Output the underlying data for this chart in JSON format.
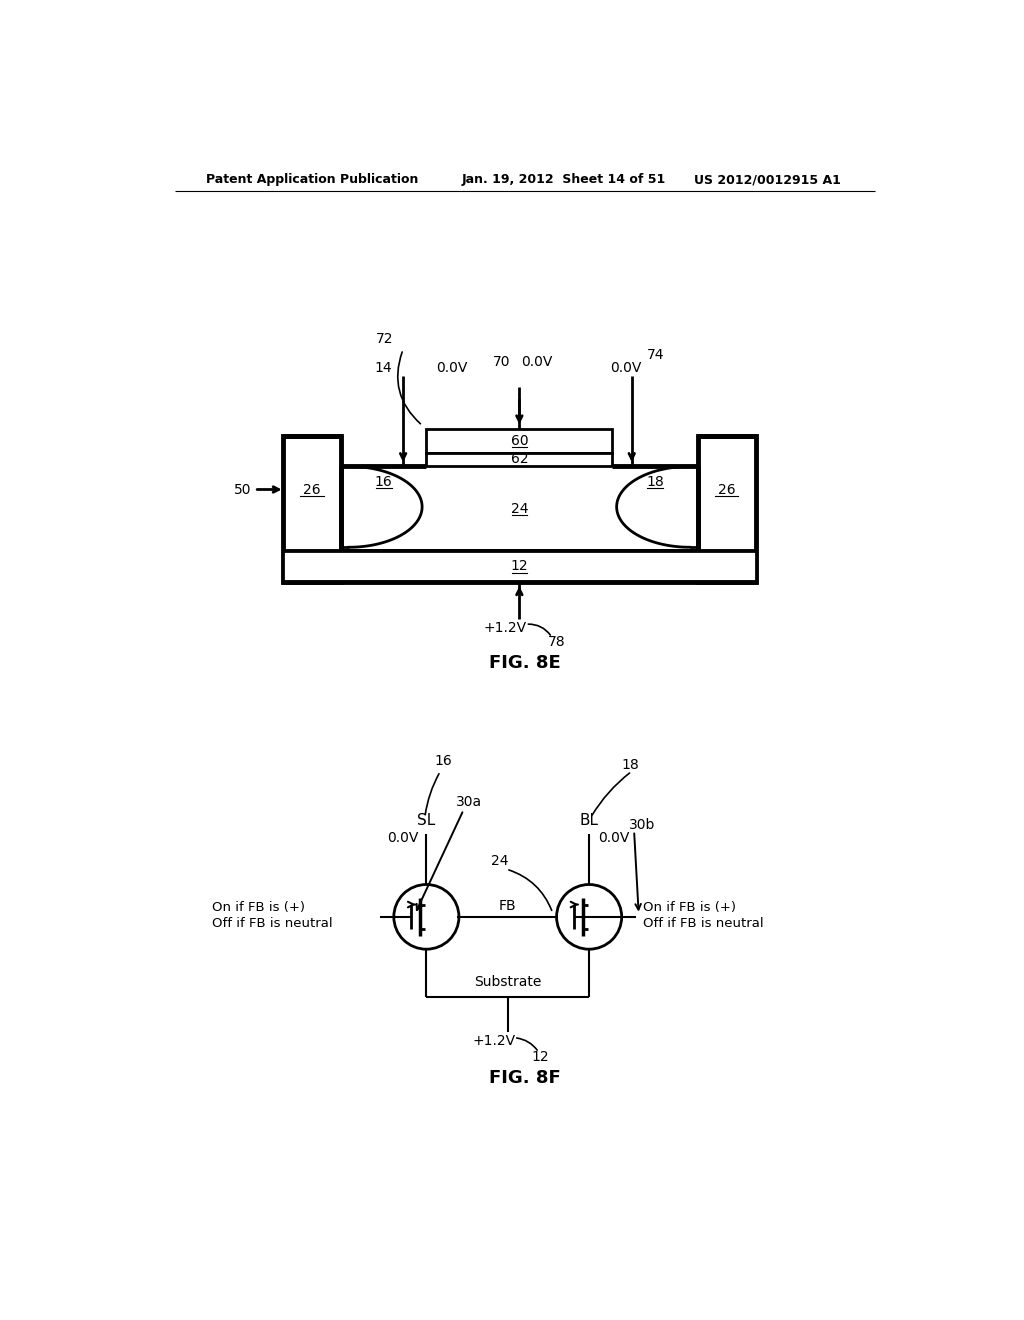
{
  "bg_color": "#ffffff",
  "header_text_left": "Patent Application Publication",
  "header_text_mid": "Jan. 19, 2012  Sheet 14 of 51",
  "header_text_right": "US 2012/0012915 A1",
  "fig8e_label": "FIG. 8E",
  "fig8f_label": "FIG. 8F",
  "line_color": "#000000",
  "lw_thin": 1.2,
  "lw_med": 2.0,
  "lw_thick": 3.5,
  "fs_label": 10,
  "fs_fig": 13
}
